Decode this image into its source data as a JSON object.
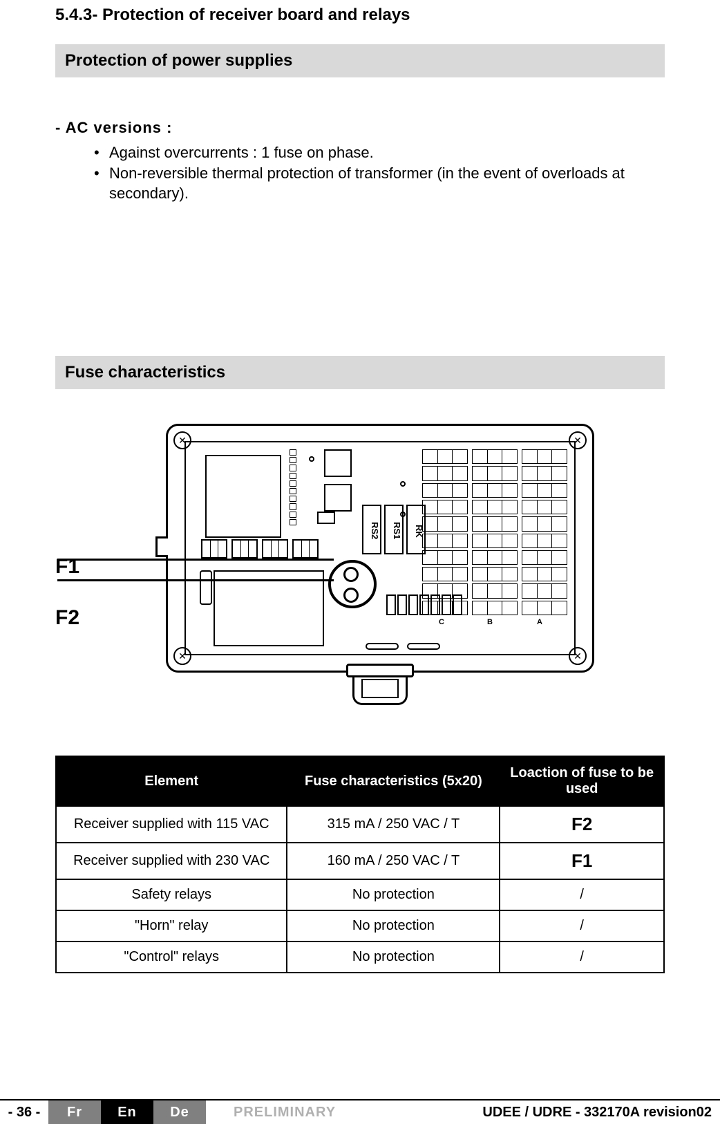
{
  "section_number": "5.4.3-    Protection of receiver board and relays",
  "band1": "Protection of power supplies",
  "ac_title": "- AC versions :",
  "bullets": [
    "Against overcurrents : 1 fuse on phase.",
    "Non-reversible thermal protection of transformer (in the event of overloads at secondary)."
  ],
  "band2": "Fuse characteristics",
  "diagram": {
    "f1_label": "F1",
    "f2_label": "F2",
    "rk": "RK",
    "rs1": "RS1",
    "rs2": "RS2",
    "bank_c": "C",
    "bank_b": "B",
    "bank_a": "A"
  },
  "table": {
    "headers": [
      "Element",
      "Fuse characteristics (5x20)",
      "Loaction of fuse to be used"
    ],
    "rows": [
      {
        "element": "Receiver supplied with 115 VAC",
        "fuse": "315 mA / 250 VAC / T",
        "loc": "F2",
        "loc_bold": true
      },
      {
        "element": "Receiver supplied with 230 VAC",
        "fuse": "160 mA / 250 VAC / T",
        "loc": "F1",
        "loc_bold": true
      },
      {
        "element": "Safety relays",
        "fuse": "No protection",
        "loc": "/",
        "loc_bold": false
      },
      {
        "element": "\"Horn\" relay",
        "fuse": "No protection",
        "loc": "/",
        "loc_bold": false
      },
      {
        "element": "\"Control\" relays",
        "fuse": "No protection",
        "loc": "/",
        "loc_bold": false
      }
    ]
  },
  "footer": {
    "page": "- 36 -",
    "fr": "Fr",
    "en": "En",
    "de": "De",
    "prelim": "PRELIMINARY",
    "docref": "UDEE / UDRE - 332170A revision02"
  }
}
